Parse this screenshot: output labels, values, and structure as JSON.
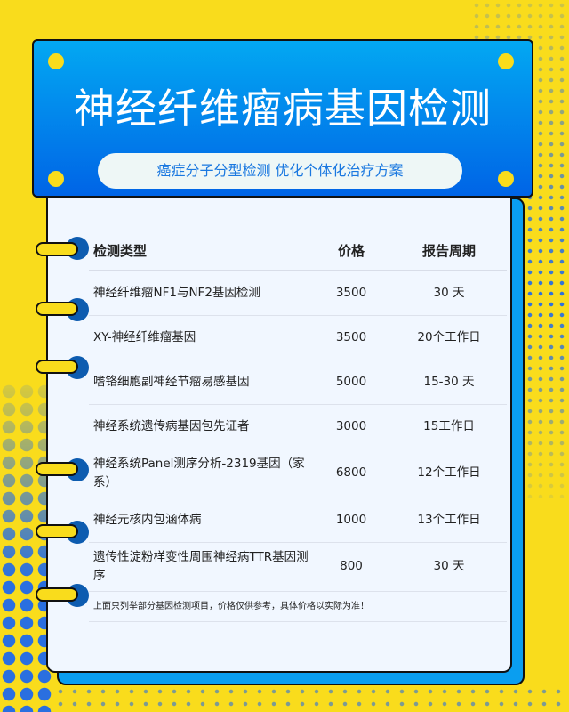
{
  "header": {
    "title": "神经纤维瘤病基因检测",
    "subtitle": "癌症分子分型检测 优化个体化治疗方案"
  },
  "table": {
    "columns": [
      "检测类型",
      "价格",
      "报告周期"
    ],
    "rows": [
      {
        "name": "神经纤维瘤NF1与NF2基因检测",
        "price": "3500",
        "period": "30 天"
      },
      {
        "name": "XY-神经纤维瘤基因",
        "price": "3500",
        "period": "20个工作日"
      },
      {
        "name": "嗜铬细胞副神经节瘤易感基因",
        "price": "5000",
        "period": "15-30 天"
      },
      {
        "name": "神经系统遗传病基因包先证者",
        "price": "3000",
        "period": "15工作日"
      },
      {
        "name": "神经系统Panel测序分析-2319基因（家系）",
        "price": "6800",
        "period": "12个工作日"
      },
      {
        "name": "神经元核内包涵体病",
        "price": "1000",
        "period": "13个工作日"
      },
      {
        "name": "遗传性淀粉样变性周围神经病TTR基因测序",
        "price": "800",
        "period": "30 天"
      }
    ],
    "note": "上面只列举部分基因检测项目，价格仅供参考，具体价格以实际为准！"
  },
  "colors": {
    "background": "#f9dc1c",
    "header_top": "#03a8f2",
    "header_bottom": "#0064e6",
    "accent": "#0d5cb0"
  }
}
